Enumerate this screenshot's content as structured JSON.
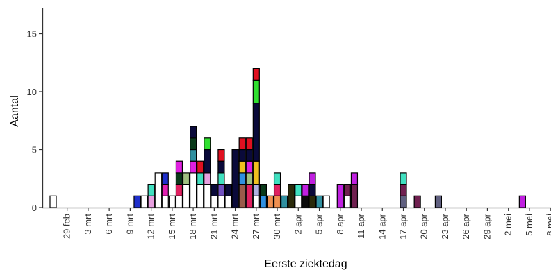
{
  "chart_data": {
    "type": "bar",
    "stacked": true,
    "xlabel": "Eerste ziektedag",
    "ylabel": "Aantal",
    "ylim": [
      0,
      17
    ],
    "yticks": [
      0,
      5,
      10,
      15
    ],
    "grid": false,
    "legend": "none",
    "categories": [
      "27 feb",
      "28 feb",
      "29 feb",
      "1 mrt",
      "2 mrt",
      "3 mrt",
      "4 mrt",
      "5 mrt",
      "6 mrt",
      "7 mrt",
      "8 mrt",
      "9 mrt",
      "10 mrt",
      "11 mrt",
      "12 mrt",
      "13 mrt",
      "14 mrt",
      "15 mrt",
      "16 mrt",
      "17 mrt",
      "18 mrt",
      "19 mrt",
      "20 mrt",
      "21 mrt",
      "22 mrt",
      "23 mrt",
      "24 mrt",
      "25 mrt",
      "26 mrt",
      "27 mrt",
      "28 mrt",
      "29 mrt",
      "30 mrt",
      "31 mrt",
      "1 apr",
      "2 apr",
      "3 apr",
      "4 apr",
      "5 apr",
      "6 apr",
      "7 apr",
      "8 apr",
      "9 apr",
      "10 apr",
      "11 apr",
      "12 apr",
      "13 apr",
      "14 apr",
      "15 apr",
      "16 apr",
      "17 apr",
      "18 apr",
      "19 apr",
      "20 apr",
      "21 apr",
      "22 apr",
      "23 apr",
      "24 apr",
      "25 apr",
      "26 apr",
      "27 apr",
      "28 apr",
      "29 apr",
      "30 apr",
      "1 mei",
      "2 mei",
      "3 mei",
      "4 mei",
      "5 mei",
      "6 mei",
      "7 mei",
      "8 mei"
    ],
    "xtick_labels": [
      "29 feb",
      "3 mrt",
      "6 mrt",
      "9 mrt",
      "12 mrt",
      "15 mrt",
      "18 mrt",
      "21 mrt",
      "24 mrt",
      "27 mrt",
      "30 mrt",
      "2 apr",
      "5 apr",
      "8 apr",
      "11 apr",
      "14 apr",
      "17 apr",
      "20 apr",
      "23 apr",
      "26 apr",
      "29 apr",
      "2 mei",
      "5 mei",
      "8 mei"
    ],
    "stacks": [
      {
        "x": "27 feb",
        "segments": [
          {
            "count": 1,
            "color": "#ffffff"
          }
        ]
      },
      {
        "x": "10 mrt",
        "segments": [
          {
            "count": 1,
            "color": "#1f2fcc"
          }
        ]
      },
      {
        "x": "11 mrt",
        "segments": [
          {
            "count": 1,
            "color": "#ffffff"
          }
        ]
      },
      {
        "x": "12 mrt",
        "segments": [
          {
            "count": 1,
            "color": "#e8a0e0"
          },
          {
            "count": 1,
            "color": "#40e0c0"
          }
        ]
      },
      {
        "x": "13 mrt",
        "segments": [
          {
            "count": 3,
            "color": "#ffffff"
          }
        ]
      },
      {
        "x": "14 mrt",
        "segments": [
          {
            "count": 1,
            "color": "#ffffff"
          },
          {
            "count": 1,
            "color": "#e020b0"
          },
          {
            "count": 1,
            "color": "#1f2fcc"
          }
        ]
      },
      {
        "x": "15 mrt",
        "segments": [
          {
            "count": 1,
            "color": "#ffffff"
          }
        ]
      },
      {
        "x": "16 mrt",
        "segments": [
          {
            "count": 1,
            "color": "#ffffff"
          },
          {
            "count": 1,
            "color": "#e02060"
          },
          {
            "count": 1,
            "color": "#0a3a1a"
          },
          {
            "count": 1,
            "color": "#e020e0"
          }
        ]
      },
      {
        "x": "17 mrt",
        "segments": [
          {
            "count": 2,
            "color": "#ffffff"
          },
          {
            "count": 1,
            "color": "#a0c080"
          }
        ]
      },
      {
        "x": "18 mrt",
        "segments": [
          {
            "count": 3,
            "color": "#ffffff"
          },
          {
            "count": 1,
            "color": "#e020e0"
          },
          {
            "count": 1,
            "color": "#3090a0"
          },
          {
            "count": 1,
            "color": "#0a3a1a"
          },
          {
            "count": 1,
            "color": "#0a0a3a"
          }
        ]
      },
      {
        "x": "19 mrt",
        "segments": [
          {
            "count": 2,
            "color": "#ffffff"
          },
          {
            "count": 1,
            "color": "#40e0c0"
          },
          {
            "count": 1,
            "color": "#e01020"
          }
        ]
      },
      {
        "x": "20 mrt",
        "segments": [
          {
            "count": 2,
            "color": "#ffffff"
          },
          {
            "count": 1,
            "color": "#e8a0e0"
          },
          {
            "count": 2,
            "color": "#0a0a3a"
          },
          {
            "count": 1,
            "color": "#30e030"
          }
        ]
      },
      {
        "x": "21 mrt",
        "segments": [
          {
            "count": 1,
            "color": "#ffffff"
          },
          {
            "count": 1,
            "color": "#0a0a3a"
          }
        ]
      },
      {
        "x": "22 mrt",
        "segments": [
          {
            "count": 1,
            "color": "#ffffff"
          },
          {
            "count": 1,
            "color": "#7050c0"
          },
          {
            "count": 1,
            "color": "#40e0c0"
          },
          {
            "count": 1,
            "color": "#0a0a3a"
          },
          {
            "count": 1,
            "color": "#e01020"
          }
        ]
      },
      {
        "x": "23 mrt",
        "segments": [
          {
            "count": 1,
            "color": "#ffffff"
          },
          {
            "count": 1,
            "color": "#0a0a3a"
          }
        ]
      },
      {
        "x": "24 mrt",
        "segments": [
          {
            "count": 5,
            "color": "#0a0a3a"
          }
        ]
      },
      {
        "x": "25 mrt",
        "segments": [
          {
            "count": 2,
            "color": "#9a5a4a"
          },
          {
            "count": 1,
            "color": "#3090e0"
          },
          {
            "count": 1,
            "color": "#f0c020"
          },
          {
            "count": 1,
            "color": "#0a0a3a"
          },
          {
            "count": 1,
            "color": "#e01020"
          }
        ]
      },
      {
        "x": "26 mrt",
        "segments": [
          {
            "count": 2,
            "color": "#e02060"
          },
          {
            "count": 1,
            "color": "#a0c080"
          },
          {
            "count": 1,
            "color": "#e020e0"
          },
          {
            "count": 1,
            "color": "#0a0a3a"
          },
          {
            "count": 1,
            "color": "#e01020"
          }
        ]
      },
      {
        "x": "27 mrt",
        "segments": [
          {
            "count": 1,
            "color": "#ffffff"
          },
          {
            "count": 1,
            "color": "#b0b0e0"
          },
          {
            "count": 2,
            "color": "#f0c020"
          },
          {
            "count": 5,
            "color": "#0a0a3a"
          },
          {
            "count": 2,
            "color": "#30e030"
          },
          {
            "count": 1,
            "color": "#e01020"
          }
        ]
      },
      {
        "x": "28 mrt",
        "segments": [
          {
            "count": 1,
            "color": "#3090e0"
          },
          {
            "count": 1,
            "color": "#0a3a1a"
          }
        ]
      },
      {
        "x": "29 mrt",
        "segments": [
          {
            "count": 1,
            "color": "#f09050"
          }
        ]
      },
      {
        "x": "30 mrt",
        "segments": [
          {
            "count": 1,
            "color": "#f09050"
          },
          {
            "count": 1,
            "color": "#e02060"
          },
          {
            "count": 1,
            "color": "#40e0c0"
          }
        ]
      },
      {
        "x": "31 mrt",
        "segments": [
          {
            "count": 1,
            "color": "#3090a0"
          }
        ]
      },
      {
        "x": "1 apr",
        "segments": [
          {
            "count": 2,
            "color": "#2a2a0a"
          }
        ]
      },
      {
        "x": "2 apr",
        "segments": [
          {
            "count": 1,
            "color": "#ffffff"
          },
          {
            "count": 1,
            "color": "#40e0c0"
          }
        ]
      },
      {
        "x": "3 apr",
        "segments": [
          {
            "count": 1,
            "color": "#0a0a0a"
          },
          {
            "count": 1,
            "color": "#c020e0"
          }
        ]
      },
      {
        "x": "4 apr",
        "segments": [
          {
            "count": 1,
            "color": "#2a2a0a"
          },
          {
            "count": 1,
            "color": "#0a0a3a"
          },
          {
            "count": 1,
            "color": "#c020e0"
          }
        ]
      },
      {
        "x": "5 apr",
        "segments": [
          {
            "count": 1,
            "color": "#3090a0"
          }
        ]
      },
      {
        "x": "6 apr",
        "segments": [
          {
            "count": 1,
            "color": "#ffffff"
          }
        ]
      },
      {
        "x": "8 apr",
        "segments": [
          {
            "count": 2,
            "color": "#c020e0"
          }
        ]
      },
      {
        "x": "9 apr",
        "segments": [
          {
            "count": 1,
            "color": "#ffffff"
          },
          {
            "count": 1,
            "color": "#702050"
          }
        ]
      },
      {
        "x": "10 apr",
        "segments": [
          {
            "count": 2,
            "color": "#702050"
          },
          {
            "count": 1,
            "color": "#c020e0"
          }
        ]
      },
      {
        "x": "17 apr",
        "segments": [
          {
            "count": 1,
            "color": "#606080"
          },
          {
            "count": 1,
            "color": "#702050"
          },
          {
            "count": 1,
            "color": "#40e0c0"
          }
        ]
      },
      {
        "x": "19 apr",
        "segments": [
          {
            "count": 1,
            "color": "#702050"
          }
        ]
      },
      {
        "x": "22 apr",
        "segments": [
          {
            "count": 1,
            "color": "#606080"
          }
        ]
      },
      {
        "x": "4 mei",
        "segments": [
          {
            "count": 1,
            "color": "#c020e0"
          }
        ]
      }
    ]
  }
}
